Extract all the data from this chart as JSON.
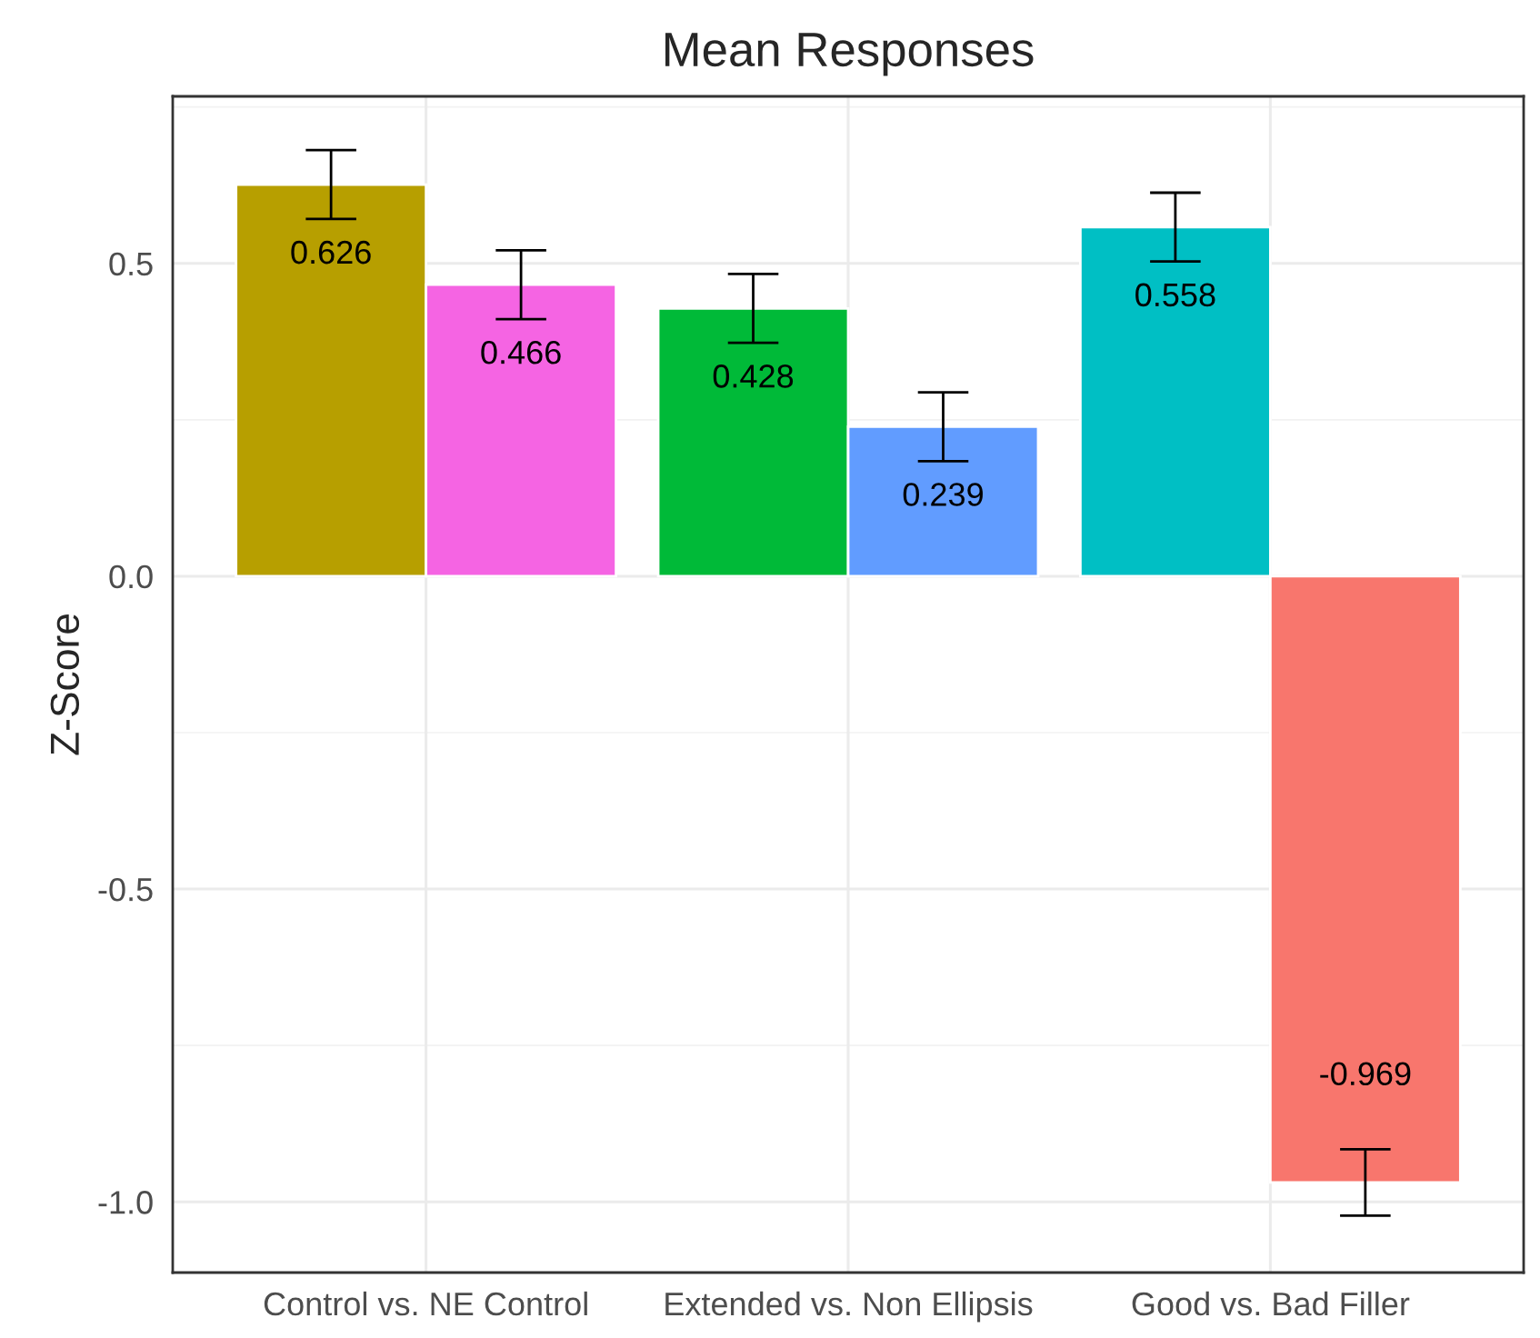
{
  "chart_data": {
    "type": "bar",
    "title": "Mean Responses",
    "ylabel": "Z-Score",
    "categories": [
      "Control vs. NE Control",
      "Extended vs. Non Ellipsis",
      "Good vs. Bad Filler"
    ],
    "series": [
      {
        "colors": [
          "#b79f00",
          "#00ba38",
          "#00bfc4"
        ],
        "values": [
          0.626,
          0.428,
          0.558
        ],
        "errors": [
          0.055,
          0.055,
          0.055
        ]
      },
      {
        "colors": [
          "#f564e3",
          "#619cff",
          "#f8766d"
        ],
        "values": [
          0.466,
          0.239,
          -0.969
        ],
        "errors": [
          0.055,
          0.055,
          0.053
        ]
      }
    ],
    "ylim": [
      -1.113,
      0.767
    ],
    "yticks": [
      {
        "value": -1,
        "label": "-1.0"
      },
      {
        "value": -0.5,
        "label": "-0.5"
      },
      {
        "value": 0,
        "label": "0.0"
      },
      {
        "value": 0.5,
        "label": "0.5"
      }
    ],
    "grid": true,
    "data_labels": true,
    "legend": false
  }
}
